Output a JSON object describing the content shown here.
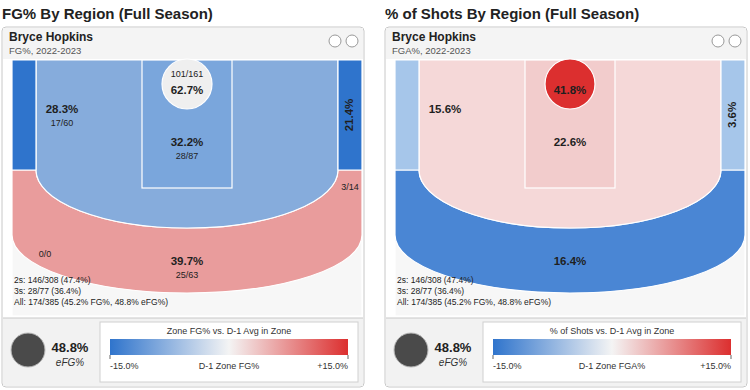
{
  "chart_data": [
    {
      "type": "shot_chart",
      "title": "FG% By Region (Full Season)",
      "subtitle": "Bryce Hopkins",
      "caption": "FG%, 2022-2023",
      "values": [
        62.7,
        32.2,
        28.3,
        21.4,
        39.7,
        null
      ],
      "value_labels": [
        "62.7%",
        "32.2%",
        "28.3%",
        "21.4%",
        "39.7%",
        null
      ],
      "counts": [
        "101/161",
        "28/87",
        "17/60",
        "3/14",
        "25/63",
        "0/0"
      ],
      "colors": [
        "#efefef",
        "#7aa6dc",
        "#86acdc",
        "#2f74cc",
        "#e99c9c",
        "#f7f7f7"
      ],
      "data_labels": true,
      "summary": [
        "2s: 146/308 (47.4%)",
        "3s: 28/77 (36.4%)",
        "All: 174/385 (45.2% FG%, 48.8% eFG%)"
      ],
      "efg": "48.8%",
      "efg_label": "eFG%",
      "colorbar": {
        "title": "Zone FG% vs. D-1 Avg in Zone",
        "label": "D-1 Zone FG%",
        "range": [
          -15,
          15
        ],
        "ticks": [
          {
            "value": -15,
            "label": "-15.0%"
          },
          {
            "value": 15,
            "label": "+15.0%"
          }
        ]
      }
    },
    {
      "type": "shot_chart",
      "title": "% of Shots By Region (Full Season)",
      "subtitle": "Bryce Hopkins",
      "caption": "FGA%, 2022-2023",
      "values": [
        41.8,
        22.6,
        15.6,
        3.6,
        16.4,
        null
      ],
      "value_labels": [
        "41.8%",
        "22.6%",
        "15.6%",
        "3.6%",
        "16.4%",
        null
      ],
      "colors": [
        "#dc2f2f",
        "#f2cccc",
        "#f5d8d8",
        "#a6c6ea",
        "#4a86d4",
        "#f7f7f7"
      ],
      "data_labels": true,
      "summary": [
        "2s: 146/308 (47.4%)",
        "3s: 28/77 (36.4%)",
        "All: 174/385 (45.2% FG%, 48.8% eFG%)"
      ],
      "efg": "48.8%",
      "efg_label": "eFG%",
      "colorbar": {
        "title": "% of Shots vs. D-1 Avg in Zone",
        "label": "D-1 Zone FGA%",
        "range": [
          -15,
          15
        ],
        "ticks": [
          {
            "value": -15,
            "label": "-15.0%"
          },
          {
            "value": 15,
            "label": "+15.0%"
          }
        ]
      }
    }
  ]
}
